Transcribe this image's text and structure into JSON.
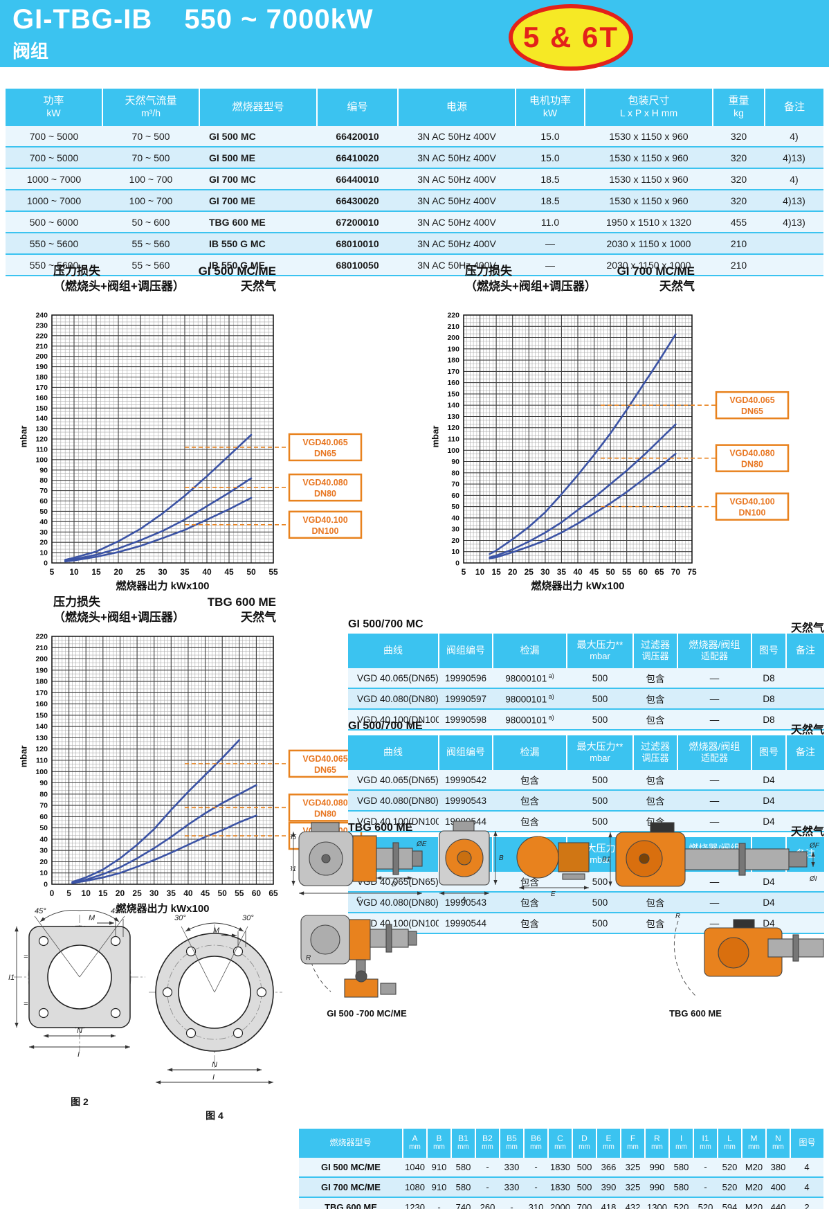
{
  "header": {
    "title_model": "GI-TBG-IB",
    "title_range": "550 ~ 7000kW",
    "subtitle": "阀组",
    "badge": "5 & 6T"
  },
  "colors": {
    "accent_blue": "#3BC3F0",
    "row_light": "#EAF6FD",
    "row_dark": "#D7EEFA",
    "grey_column": "#E7E5E2",
    "curve_blue": "#3B53A5",
    "annotation_orange": "#E8821E",
    "badge_yellow": "#F6E925",
    "badge_red": "#E3211A"
  },
  "main_table": {
    "headers": [
      {
        "l1": "功率",
        "l2": "kW"
      },
      {
        "l1": "天然气流量",
        "l2": "m³/h"
      },
      {
        "l1": "燃烧器型号",
        "l2": ""
      },
      {
        "l1": "编号",
        "l2": ""
      },
      {
        "l1": "电源",
        "l2": ""
      },
      {
        "l1": "电机功率",
        "l2": "kW"
      },
      {
        "l1": "包装尺寸",
        "l2": "L x P x H  mm"
      },
      {
        "l1": "重量",
        "l2": "kg"
      },
      {
        "l1": "备注",
        "l2": ""
      }
    ],
    "rows": [
      [
        "700 ~ 5000",
        "70 ~ 500",
        "GI 500 MC",
        "66420010",
        "3N AC 50Hz 400V",
        "15.0",
        "1530 x 1150 x 960",
        "320",
        "4)"
      ],
      [
        "700 ~ 5000",
        "70 ~ 500",
        "GI 500 ME",
        "66410020",
        "3N AC 50Hz 400V",
        "15.0",
        "1530 x 1150 x 960",
        "320",
        "4)13)"
      ],
      [
        "1000 ~ 7000",
        "100 ~ 700",
        "GI 700 MC",
        "66440010",
        "3N AC 50Hz 400V",
        "18.5",
        "1530 x 1150 x 960",
        "320",
        "4)"
      ],
      [
        "1000 ~ 7000",
        "100 ~ 700",
        "GI 700 ME",
        "66430020",
        "3N AC 50Hz 400V",
        "18.5",
        "1530 x 1150 x 960",
        "320",
        "4)13)"
      ],
      [
        "500 ~ 6000",
        "50 ~ 600",
        "TBG 600 ME",
        "67200010",
        "3N AC 50Hz 400V",
        "11.0",
        "1950 x 1510 x 1320",
        "455",
        "4)13)"
      ],
      [
        "550 ~ 5600",
        "55 ~ 560",
        "IB 550 G MC",
        "68010010",
        "3N AC 50Hz 400V",
        "—",
        "2030 x 1150 x 1000",
        "210",
        ""
      ],
      [
        "550 ~ 5600",
        "55 ~ 560",
        "IB 550 G ME",
        "68010050",
        "3N AC 50Hz 400V",
        "—",
        "2030 x 1150 x 1000",
        "210",
        ""
      ]
    ]
  },
  "chart_data": [
    {
      "type": "line",
      "title": "压力损失",
      "subtitle": "（燃烧头+阀组+调压器）",
      "model": "GI 500 MC/ME",
      "gas": "天然气",
      "xlabel": "燃烧器出力  kWx100",
      "ylabel": "mbar",
      "xlim": [
        5,
        55
      ],
      "ylim": [
        0,
        240
      ],
      "xstep": 5,
      "ystep": 10,
      "grid": true,
      "series": [
        {
          "name": "VGD40.065 DN65",
          "x": [
            8,
            10,
            15,
            20,
            25,
            30,
            35,
            40,
            45,
            50
          ],
          "y": [
            3,
            5,
            11,
            21,
            33,
            48,
            65,
            84,
            104,
            124
          ]
        },
        {
          "name": "VGD40.080 DN80",
          "x": [
            8,
            10,
            15,
            20,
            25,
            30,
            35,
            40,
            45,
            50
          ],
          "y": [
            2,
            3.5,
            8,
            14,
            22,
            31,
            42,
            55,
            68,
            82
          ]
        },
        {
          "name": "VGD40.100 DN100",
          "x": [
            8,
            10,
            15,
            20,
            25,
            30,
            35,
            40,
            45,
            50
          ],
          "y": [
            1.5,
            2.5,
            6,
            10.5,
            16.5,
            24,
            32,
            42,
            52,
            63
          ]
        }
      ],
      "annotations": [
        {
          "l1": "VGD40.065",
          "l2": "DN65",
          "at": 112
        },
        {
          "l1": "VGD40.080",
          "l2": "DN80",
          "at": 73
        },
        {
          "l1": "VGD40.100",
          "l2": "DN100",
          "at": 37
        }
      ]
    },
    {
      "type": "line",
      "title": "压力损失",
      "subtitle": "（燃烧头+阀组+调压器）",
      "model": "GI 700 MC/ME",
      "gas": "天然气",
      "xlabel": "燃烧器出力  kWx100",
      "ylabel": "mbar",
      "xlim": [
        5,
        75
      ],
      "ylim": [
        0,
        220
      ],
      "xstep": 5,
      "ystep": 10,
      "grid": true,
      "series": [
        {
          "name": "VGD40.065 DN65",
          "x": [
            13,
            15,
            20,
            25,
            30,
            35,
            40,
            45,
            50,
            55,
            60,
            65,
            70
          ],
          "y": [
            8,
            11,
            21,
            32,
            45,
            61,
            78,
            96,
            115,
            136,
            158,
            180,
            203
          ]
        },
        {
          "name": "VGD40.080 DN80",
          "x": [
            13,
            15,
            20,
            25,
            30,
            35,
            40,
            45,
            50,
            55,
            60,
            65,
            70
          ],
          "y": [
            5,
            6.5,
            12,
            19,
            27,
            36,
            47,
            58,
            70,
            82,
            95,
            109,
            123
          ]
        },
        {
          "name": "VGD40.100 DN100",
          "x": [
            13,
            15,
            20,
            25,
            30,
            35,
            40,
            45,
            50,
            55,
            60,
            65,
            70
          ],
          "y": [
            4,
            5,
            9.5,
            14.5,
            20,
            27,
            35,
            44,
            53,
            63,
            74,
            85,
            97
          ]
        }
      ],
      "annotations": [
        {
          "l1": "VGD40.065",
          "l2": "DN65",
          "at": 140
        },
        {
          "l1": "VGD40.080",
          "l2": "DN80",
          "at": 93
        },
        {
          "l1": "VGD40.100",
          "l2": "DN100",
          "at": 50
        }
      ]
    },
    {
      "type": "line",
      "title": "压力损失",
      "subtitle": "（燃烧头+阀组+调压器）",
      "model": "TBG 600 ME",
      "gas": "天然气",
      "xlabel": "燃烧器出力  kWx100",
      "ylabel": "mbar",
      "xlim": [
        0,
        65
      ],
      "ylim": [
        0,
        220
      ],
      "xstep": 5,
      "ystep": 10,
      "grid": true,
      "series": [
        {
          "name": "VGD40.065 DN65",
          "x": [
            6,
            10,
            15,
            20,
            25,
            30,
            35,
            40,
            45,
            50,
            55
          ],
          "y": [
            2,
            6,
            13,
            23,
            35,
            49,
            66,
            82,
            97,
            112,
            128
          ]
        },
        {
          "name": "VGD40.080 DN80",
          "x": [
            6,
            10,
            15,
            20,
            25,
            30,
            35,
            40,
            45,
            50,
            55,
            60
          ],
          "y": [
            1.5,
            4,
            9,
            15,
            23,
            32,
            42,
            53,
            63,
            72,
            80,
            88
          ]
        },
        {
          "name": "VGD40.100 DN100",
          "x": [
            6,
            10,
            15,
            20,
            25,
            30,
            35,
            40,
            45,
            50,
            55,
            60
          ],
          "y": [
            1,
            3,
            6,
            10,
            15.5,
            21.5,
            28,
            35,
            42,
            48,
            55,
            61
          ]
        }
      ],
      "annotations": [
        {
          "l1": "VGD40.065",
          "l2": "DN65",
          "at": 107
        },
        {
          "l1": "VGD40.080",
          "l2": "DN80",
          "at": 68
        },
        {
          "l1": "VGD40.100",
          "l2": "DN100",
          "at": 43
        }
      ]
    }
  ],
  "small_tables": [
    {
      "title": "GI 500/700 MC",
      "gas": "天然气",
      "headers": [
        {
          "l1": "曲线",
          "l2": ""
        },
        {
          "l1": "阀组编号",
          "l2": ""
        },
        {
          "l1": "检漏",
          "l2": ""
        },
        {
          "l1": "最大压力**",
          "l2": "mbar"
        },
        {
          "l1": "过滤器",
          "l2": "调压器"
        },
        {
          "l1": "燃烧器/阀组",
          "l2": "适配器"
        },
        {
          "l1": "图号",
          "l2": ""
        },
        {
          "l1": "备注",
          "l2": ""
        }
      ],
      "rows": [
        {
          "curve": "VGD 40.065",
          "dn": "(DN65)",
          "code": "19990596",
          "leak": "98000101",
          "leak_sup": "a)",
          "pmax": "500",
          "filter": "包含",
          "adapter": "—",
          "fig": "D8",
          "note": ""
        },
        {
          "curve": "VGD 40.080",
          "dn": "(DN80)",
          "code": "19990597",
          "leak": "98000101",
          "leak_sup": "a)",
          "pmax": "500",
          "filter": "包含",
          "adapter": "—",
          "fig": "D8",
          "note": ""
        },
        {
          "curve": "VGD 40.100",
          "dn": "(DN100)",
          "code": "19990598",
          "leak": "98000101",
          "leak_sup": "a)",
          "pmax": "500",
          "filter": "包含",
          "adapter": "—",
          "fig": "D8",
          "note": ""
        }
      ]
    },
    {
      "title": "GI 500/700 ME",
      "gas": "天然气",
      "headers": [
        {
          "l1": "曲线",
          "l2": ""
        },
        {
          "l1": "阀组编号",
          "l2": ""
        },
        {
          "l1": "检漏",
          "l2": ""
        },
        {
          "l1": "最大压力**",
          "l2": "mbar"
        },
        {
          "l1": "过滤器",
          "l2": "调压器"
        },
        {
          "l1": "燃烧器/阀组",
          "l2": "适配器"
        },
        {
          "l1": "图号",
          "l2": ""
        },
        {
          "l1": "备注",
          "l2": ""
        }
      ],
      "rows": [
        {
          "curve": "VGD 40.065",
          "dn": "(DN65)",
          "code": "19990542",
          "leak": "包含",
          "leak_sup": "",
          "pmax": "500",
          "filter": "包含",
          "adapter": "—",
          "fig": "D4",
          "note": ""
        },
        {
          "curve": "VGD 40.080",
          "dn": "(DN80)",
          "code": "19990543",
          "leak": "包含",
          "leak_sup": "",
          "pmax": "500",
          "filter": "包含",
          "adapter": "—",
          "fig": "D4",
          "note": ""
        },
        {
          "curve": "VGD 40.100",
          "dn": "(DN100)",
          "code": "19990544",
          "leak": "包含",
          "leak_sup": "",
          "pmax": "500",
          "filter": "包含",
          "adapter": "—",
          "fig": "D4",
          "note": ""
        }
      ]
    },
    {
      "title": "TBG 600 ME",
      "gas": "天然气",
      "headers": [
        {
          "l1": "曲线",
          "l2": ""
        },
        {
          "l1": "阀组编号",
          "l2": ""
        },
        {
          "l1": "检漏",
          "l2": ""
        },
        {
          "l1": "最大压力**",
          "l2": "mbar"
        },
        {
          "l1": "过滤器",
          "l2": "调压器"
        },
        {
          "l1": "燃烧器/阀组",
          "l2": "适配器"
        },
        {
          "l1": "图号",
          "l2": ""
        },
        {
          "l1": "备注",
          "l2": ""
        }
      ],
      "rows": [
        {
          "curve": "VGD 40.065",
          "dn": "(DN65)",
          "code": "19990542",
          "leak": "包含",
          "leak_sup": "",
          "pmax": "500",
          "filter": "包含",
          "adapter": "—",
          "fig": "D4",
          "note": ""
        },
        {
          "curve": "VGD 40.080",
          "dn": "(DN80)",
          "code": "19990543",
          "leak": "包含",
          "leak_sup": "",
          "pmax": "500",
          "filter": "包含",
          "adapter": "—",
          "fig": "D4",
          "note": ""
        },
        {
          "curve": "VGD 40.100",
          "dn": "(DN100)",
          "code": "19990544",
          "leak": "包含",
          "leak_sup": "",
          "pmax": "500",
          "filter": "包含",
          "adapter": "—",
          "fig": "D4",
          "note": ""
        }
      ]
    }
  ],
  "dim_table": {
    "col0": "燃烧器型号",
    "unit": "mm",
    "fig_col": "图号",
    "letters": [
      "A",
      "B",
      "B1",
      "B2",
      "B5",
      "B6",
      "C",
      "D",
      "E",
      "F",
      "R",
      "I",
      "I1",
      "L",
      "M",
      "N"
    ],
    "rows": [
      {
        "model": "GI 500 MC/ME",
        "values": [
          "1040",
          "910",
          "580",
          "-",
          "330",
          "-",
          "1830",
          "500",
          "366",
          "325",
          "990",
          "580",
          "-",
          "520",
          "M20",
          "380"
        ],
        "fig": "4"
      },
      {
        "model": "GI 700 MC/ME",
        "values": [
          "1080",
          "910",
          "580",
          "-",
          "330",
          "-",
          "1830",
          "500",
          "390",
          "325",
          "990",
          "580",
          "-",
          "520",
          "M20",
          "400"
        ],
        "fig": "4"
      },
      {
        "model": "TBG 600 ME",
        "values": [
          "1230",
          "-",
          "740",
          "260",
          "-",
          "310",
          "2000",
          "700",
          "418",
          "432",
          "1300",
          "520",
          "520",
          "594",
          "M20",
          "440"
        ],
        "fig": "2"
      }
    ]
  },
  "drawings": {
    "fig2_caption": "图 2",
    "fig4_caption": "图 4",
    "gi_caption": "GI 500 -700 MC/ME",
    "tbg_caption": "TBG 600 ME",
    "angle45": "45°",
    "angle30": "30°",
    "labels": {
      "m": "M",
      "n": "N",
      "i": "I",
      "i1": "I1",
      "a": "A",
      "b": "B",
      "b1": "B1",
      "b5": "B5",
      "c": "C",
      "d": "D",
      "e": "E",
      "r": "R",
      "oe": "ØE",
      "of": "ØF",
      "oi": "ØI"
    }
  }
}
